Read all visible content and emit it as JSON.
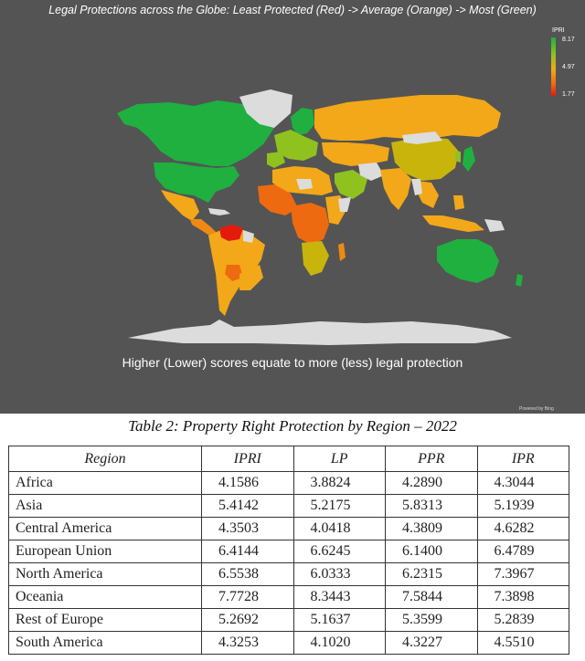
{
  "map": {
    "title": "Legal Protections across the Globe: Least Protected (Red) -> Average (Orange) -> Most (Green)",
    "caption": "Higher (Lower) scores equate to more (less) legal protection",
    "attribution": "Powered by Bing",
    "legend": {
      "title": "IPRI",
      "max": "8.17",
      "mid": "4.97",
      "min": "1.77"
    },
    "colors": {
      "background": "#545454",
      "most_protected": "#1fb040",
      "above_average": "#8fc21f",
      "average": "#f2a818",
      "below_average": "#ee6a10",
      "least_protected": "#e41a0c",
      "no_data": "#dcdcdc"
    }
  },
  "table": {
    "title": "Table 2: Property Right Protection by Region – 2022",
    "headers": [
      "Region",
      "IPRI",
      "LP",
      "PPR",
      "IPR"
    ],
    "rows": [
      [
        "Africa",
        "4.1586",
        "3.8824",
        "4.2890",
        "4.3044"
      ],
      [
        "Asia",
        "5.4142",
        "5.2175",
        "5.8313",
        "5.1939"
      ],
      [
        "Central America",
        "4.3503",
        "4.0418",
        "4.3809",
        "4.6282"
      ],
      [
        "European Union",
        "6.4144",
        "6.6245",
        "6.1400",
        "6.4789"
      ],
      [
        "North America",
        "6.5538",
        "6.0333",
        "6.2315",
        "7.3967"
      ],
      [
        "Oceania",
        "7.7728",
        "8.3443",
        "7.5844",
        "7.3898"
      ],
      [
        "Rest of Europe",
        "5.2692",
        "5.1637",
        "5.3599",
        "5.2839"
      ],
      [
        "South America",
        "4.3253",
        "4.1020",
        "4.3227",
        "4.5510"
      ]
    ]
  }
}
